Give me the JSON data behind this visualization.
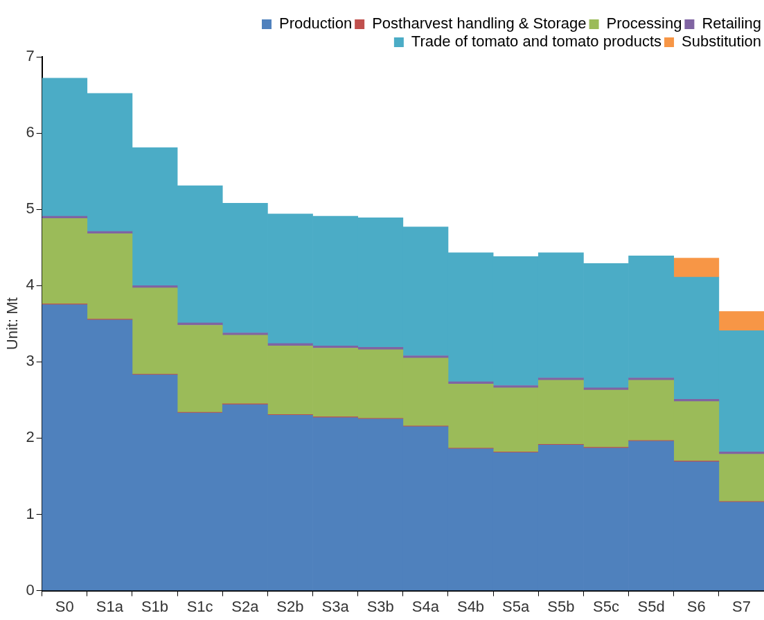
{
  "chart_data": {
    "type": "bar",
    "stacked": true,
    "ylabel": "Unit: Mt",
    "categories": [
      "S0",
      "S1a",
      "S1b",
      "S1c",
      "S2a",
      "S2b",
      "S3a",
      "S3b",
      "S4a",
      "S4b",
      "S5a",
      "S5b",
      "S5c",
      "S5d",
      "S6",
      "S7"
    ],
    "series": [
      {
        "name": "Production",
        "color": "#4f81bd",
        "values": [
          3.75,
          3.55,
          2.83,
          2.33,
          2.44,
          2.3,
          2.27,
          2.25,
          2.15,
          1.86,
          1.81,
          1.91,
          1.87,
          1.96,
          1.69,
          1.16
        ]
      },
      {
        "name": "Postharvest handling & Storage",
        "color": "#c0504d",
        "values": [
          0.01,
          0.01,
          0.01,
          0.01,
          0.01,
          0.01,
          0.01,
          0.01,
          0.01,
          0.01,
          0.01,
          0.01,
          0.01,
          0.01,
          0.01,
          0.01
        ]
      },
      {
        "name": "Processing",
        "color": "#9bbb59",
        "values": [
          1.12,
          1.12,
          1.13,
          1.14,
          0.9,
          0.9,
          0.9,
          0.9,
          0.89,
          0.84,
          0.84,
          0.84,
          0.75,
          0.79,
          0.78,
          0.62
        ]
      },
      {
        "name": "Retailing",
        "color": "#8064a2",
        "values": [
          0.03,
          0.03,
          0.03,
          0.03,
          0.03,
          0.03,
          0.03,
          0.03,
          0.03,
          0.03,
          0.03,
          0.03,
          0.03,
          0.03,
          0.03,
          0.03
        ]
      },
      {
        "name": "Trade of tomato and tomato products",
        "color": "#4bacc6",
        "values": [
          1.81,
          1.81,
          1.81,
          1.8,
          1.7,
          1.7,
          1.7,
          1.7,
          1.69,
          1.69,
          1.69,
          1.64,
          1.63,
          1.6,
          1.6,
          1.59
        ]
      },
      {
        "name": "Substitution",
        "color": "#f79646",
        "values": [
          null,
          null,
          null,
          null,
          null,
          null,
          null,
          null,
          null,
          null,
          null,
          null,
          null,
          null,
          0.25,
          0.25
        ]
      }
    ],
    "ylim": [
      0,
      7
    ],
    "yticks": [
      0,
      1,
      2,
      3,
      4,
      5,
      6,
      7
    ],
    "grid": false,
    "legend": "top right"
  }
}
